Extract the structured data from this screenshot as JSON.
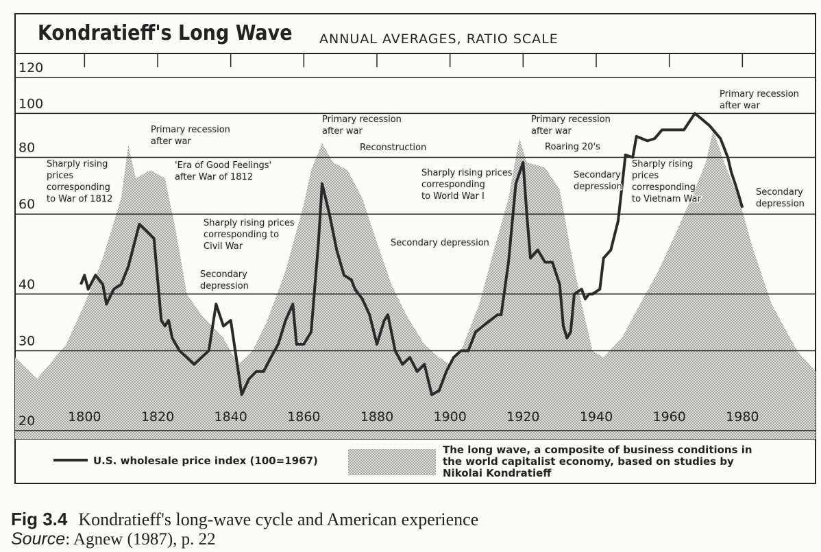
{
  "chart_data": {
    "type": "line",
    "title": "Kondratieff's Long Wave",
    "subtitle": "ANNUAL AVERAGES, RATIO SCALE",
    "log_scale": true,
    "grid": true,
    "xlim": [
      1781,
      2000
    ],
    "xticks": [
      1800,
      1820,
      1840,
      1860,
      1880,
      1900,
      1920,
      1940,
      1960,
      1980
    ],
    "ylim": [
      20,
      120
    ],
    "yticks": [
      20,
      30,
      40,
      60,
      80,
      100,
      120
    ],
    "series": [
      {
        "name": "The long wave, a composite of business conditions in the world capitalist economy, based on studies by Nikolai Kondratieff",
        "kind": "area",
        "color": "#8a8a8a",
        "x": [
          1781,
          1787,
          1795,
          1800,
          1805,
          1810,
          1812,
          1814,
          1818,
          1822,
          1825,
          1828,
          1832,
          1838,
          1842,
          1846,
          1850,
          1855,
          1860,
          1862,
          1865,
          1868,
          1872,
          1876,
          1880,
          1884,
          1888,
          1893,
          1897,
          1900,
          1903,
          1908,
          1912,
          1916,
          1918,
          1919,
          1921,
          1926,
          1930,
          1933,
          1936,
          1939,
          1942,
          1947,
          1952,
          1957,
          1962,
          1966,
          1970,
          1972,
          1975,
          1979,
          1983,
          1988,
          1995,
          2000
        ],
        "values": [
          29,
          26,
          31,
          38,
          48,
          65,
          85,
          72,
          75,
          72,
          55,
          40,
          36,
          32,
          28,
          30,
          35,
          45,
          63,
          75,
          86,
          78,
          75,
          65,
          52,
          42,
          36,
          31,
          29,
          28,
          30,
          38,
          50,
          65,
          80,
          88,
          78,
          76,
          68,
          50,
          38,
          30,
          29,
          32,
          38,
          45,
          55,
          65,
          78,
          92,
          78,
          65,
          50,
          38,
          30,
          27
        ]
      },
      {
        "name": "U.S. wholesale price index (100=1967)",
        "kind": "line",
        "color": "#2a2a2a",
        "x": [
          1799,
          1800,
          1801,
          1803,
          1805,
          1806,
          1808,
          1810,
          1812,
          1815,
          1817,
          1819,
          1821,
          1822,
          1823,
          1824,
          1826,
          1828,
          1830,
          1832,
          1834,
          1836,
          1838,
          1840,
          1843,
          1845,
          1847,
          1849,
          1851,
          1853,
          1855,
          1857,
          1858,
          1860,
          1862,
          1864,
          1865,
          1867,
          1869,
          1871,
          1873,
          1874,
          1876,
          1878,
          1880,
          1882,
          1883,
          1885,
          1887,
          1889,
          1891,
          1893,
          1895,
          1897,
          1899,
          1901,
          1903,
          1905,
          1907,
          1909,
          1911,
          1913,
          1914,
          1916,
          1918,
          1920,
          1921,
          1922,
          1924,
          1926,
          1928,
          1930,
          1931,
          1932,
          1933,
          1934,
          1936,
          1937,
          1938,
          1939,
          1941,
          1942,
          1944,
          1946,
          1948,
          1950,
          1951,
          1954,
          1956,
          1958,
          1960,
          1962,
          1964,
          1967,
          1969,
          1971,
          1974,
          1976,
          1977,
          1978,
          1979,
          1980
        ],
        "values": [
          42,
          44,
          41,
          44,
          42,
          38,
          41,
          42,
          46,
          57,
          55,
          53,
          35,
          34,
          35,
          32,
          30,
          29,
          28,
          29,
          30,
          38,
          34,
          35,
          24,
          26,
          27,
          27,
          29,
          31,
          35,
          38,
          31,
          31,
          33,
          52,
          70,
          60,
          50,
          44,
          43,
          41,
          39,
          36,
          31,
          35,
          36,
          30,
          28,
          29,
          27,
          28,
          24,
          24.5,
          27,
          29,
          30,
          30,
          33,
          34,
          35,
          36,
          36,
          47,
          70,
          78,
          60,
          48,
          50,
          47,
          47,
          42,
          34,
          32,
          33,
          40,
          41,
          39,
          40,
          40,
          41,
          48,
          50,
          58,
          81,
          80,
          89,
          87,
          88,
          92,
          92,
          92,
          92,
          100,
          97,
          94,
          88,
          80,
          74,
          70,
          66,
          62
        ]
      }
    ],
    "annotations": [
      [
        "Sharply rising",
        "prices",
        "corresponding",
        "to War of 1812"
      ],
      [
        "Primary recession",
        "after war"
      ],
      [
        "'Era of Good Feelings'",
        "after War of 1812"
      ],
      [
        "Sharply rising prices",
        "corresponding to",
        "Civil War"
      ],
      [
        "Secondary",
        "depression"
      ],
      [
        "Primary recession",
        "after war"
      ],
      [
        "Reconstruction"
      ],
      [
        "Secondary depression"
      ],
      [
        "Sharply rising prices",
        "corresponding",
        "to World War I"
      ],
      [
        "Primary recession",
        "after war"
      ],
      [
        "Roaring 20's"
      ],
      [
        "Secondary",
        "depression"
      ],
      [
        "Sharply rising",
        "prices",
        "corresponding",
        "to Vietnam War"
      ],
      [
        "Primary recession",
        "after war"
      ],
      [
        "Secondary",
        "depression"
      ]
    ]
  },
  "caption": {
    "figure": "Fig 3.4",
    "text": "Kondratieff's long-wave cycle and American experience",
    "source_label": "Source",
    "source": ": Agnew (1987), p. 22"
  }
}
